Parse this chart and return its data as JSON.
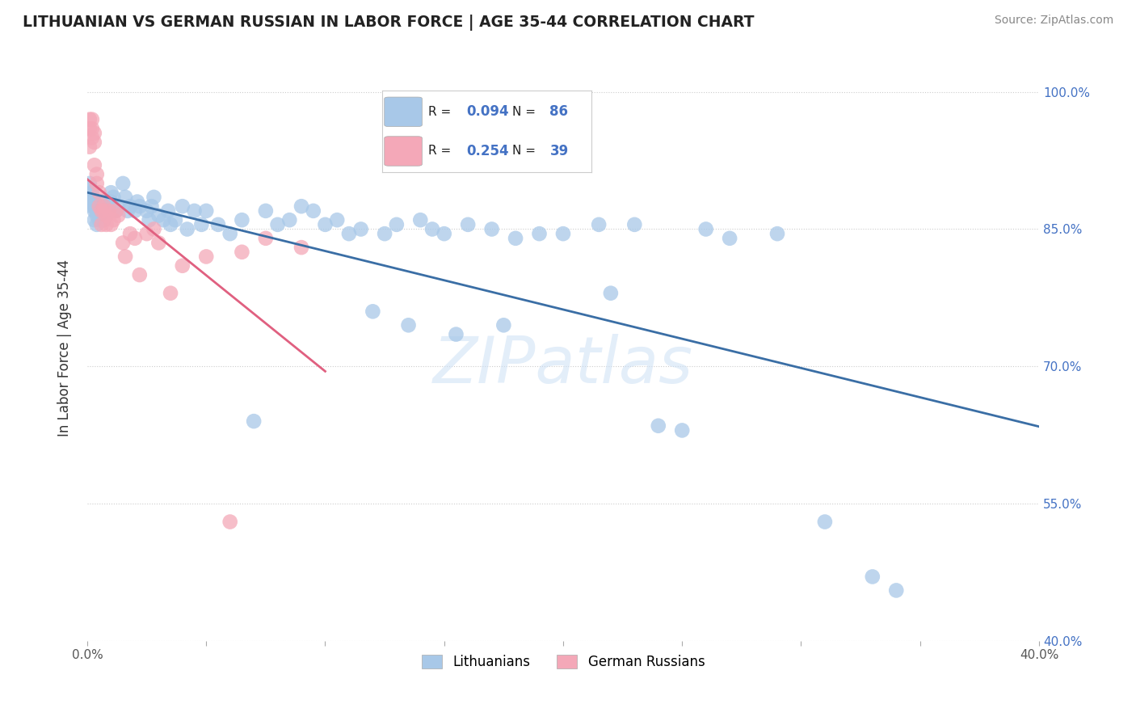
{
  "title": "LITHUANIAN VS GERMAN RUSSIAN IN LABOR FORCE | AGE 35-44 CORRELATION CHART",
  "source": "Source: ZipAtlas.com",
  "ylabel": "In Labor Force | Age 35-44",
  "xlim": [
    0.0,
    0.4
  ],
  "ylim": [
    0.4,
    1.04
  ],
  "xticks": [
    0.0,
    0.05,
    0.1,
    0.15,
    0.2,
    0.25,
    0.3,
    0.35,
    0.4
  ],
  "xtick_labels": [
    "0.0%",
    "",
    "",
    "",
    "",
    "",
    "",
    "",
    "40.0%"
  ],
  "ytick_labels_right": [
    "100.0%",
    "85.0%",
    "70.0%",
    "55.0%",
    "40.0%"
  ],
  "ytick_values_right": [
    1.0,
    0.85,
    0.7,
    0.55,
    0.4
  ],
  "blue_R": 0.094,
  "blue_N": 86,
  "pink_R": 0.254,
  "pink_N": 39,
  "blue_color": "#a8c8e8",
  "pink_color": "#f4a8b8",
  "blue_line_color": "#3a6ea5",
  "pink_line_color": "#e06080",
  "blue_x": [
    0.001,
    0.001,
    0.001,
    0.002,
    0.002,
    0.002,
    0.003,
    0.003,
    0.003,
    0.003,
    0.004,
    0.004,
    0.004,
    0.005,
    0.005,
    0.005,
    0.006,
    0.006,
    0.007,
    0.008,
    0.008,
    0.009,
    0.01,
    0.01,
    0.011,
    0.012,
    0.013,
    0.015,
    0.016,
    0.017,
    0.018,
    0.02,
    0.021,
    0.022,
    0.025,
    0.026,
    0.027,
    0.028,
    0.03,
    0.032,
    0.034,
    0.035,
    0.037,
    0.04,
    0.042,
    0.045,
    0.048,
    0.05,
    0.055,
    0.06,
    0.065,
    0.07,
    0.075,
    0.08,
    0.085,
    0.09,
    0.095,
    0.1,
    0.105,
    0.11,
    0.115,
    0.12,
    0.125,
    0.13,
    0.135,
    0.14,
    0.145,
    0.15,
    0.155,
    0.16,
    0.17,
    0.175,
    0.18,
    0.19,
    0.2,
    0.215,
    0.22,
    0.23,
    0.24,
    0.25,
    0.26,
    0.27,
    0.29,
    0.31,
    0.33,
    0.34
  ],
  "blue_y": [
    0.895,
    0.88,
    0.9,
    0.885,
    0.875,
    0.89,
    0.875,
    0.86,
    0.87,
    0.88,
    0.87,
    0.855,
    0.865,
    0.87,
    0.86,
    0.875,
    0.87,
    0.88,
    0.86,
    0.865,
    0.875,
    0.87,
    0.89,
    0.88,
    0.885,
    0.87,
    0.875,
    0.9,
    0.885,
    0.87,
    0.875,
    0.87,
    0.88,
    0.875,
    0.87,
    0.86,
    0.875,
    0.885,
    0.865,
    0.86,
    0.87,
    0.855,
    0.86,
    0.875,
    0.85,
    0.87,
    0.855,
    0.87,
    0.855,
    0.845,
    0.86,
    0.64,
    0.87,
    0.855,
    0.86,
    0.875,
    0.87,
    0.855,
    0.86,
    0.845,
    0.85,
    0.76,
    0.845,
    0.855,
    0.745,
    0.86,
    0.85,
    0.845,
    0.735,
    0.855,
    0.85,
    0.745,
    0.84,
    0.845,
    0.845,
    0.855,
    0.78,
    0.855,
    0.635,
    0.63,
    0.85,
    0.84,
    0.845,
    0.53,
    0.47,
    0.455
  ],
  "pink_x": [
    0.001,
    0.001,
    0.001,
    0.002,
    0.002,
    0.002,
    0.003,
    0.003,
    0.003,
    0.004,
    0.004,
    0.005,
    0.005,
    0.006,
    0.006,
    0.007,
    0.007,
    0.008,
    0.008,
    0.009,
    0.01,
    0.011,
    0.012,
    0.013,
    0.015,
    0.016,
    0.018,
    0.02,
    0.022,
    0.025,
    0.028,
    0.03,
    0.035,
    0.04,
    0.05,
    0.06,
    0.065,
    0.075,
    0.09
  ],
  "pink_y": [
    0.94,
    0.96,
    0.97,
    0.95,
    0.96,
    0.97,
    0.945,
    0.955,
    0.92,
    0.9,
    0.91,
    0.875,
    0.89,
    0.87,
    0.855,
    0.875,
    0.87,
    0.855,
    0.865,
    0.87,
    0.855,
    0.86,
    0.87,
    0.865,
    0.835,
    0.82,
    0.845,
    0.84,
    0.8,
    0.845,
    0.85,
    0.835,
    0.78,
    0.81,
    0.82,
    0.53,
    0.825,
    0.84,
    0.83
  ]
}
